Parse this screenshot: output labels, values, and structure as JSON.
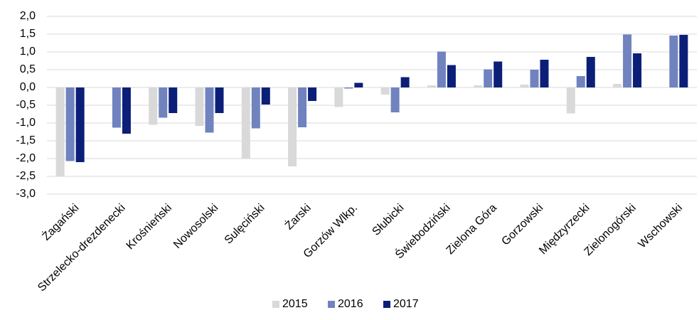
{
  "chart_data": {
    "type": "bar",
    "categories": [
      "Żagański",
      "Strzelecko-drezdenecki",
      "Krośnieński",
      "Nowosolski",
      "Sulęciński",
      "Żarski",
      "Gorzów Wlkp.",
      "Słubicki",
      "Świebodziński",
      "Zielona Góra",
      "Gorzowski",
      "Międzyrzecki",
      "Zielonogórski",
      "Wschowski"
    ],
    "series": [
      {
        "name": "2015",
        "color": "#d9d9d9",
        "values": [
          -2.5,
          0,
          -1.05,
          -1.08,
          -2.0,
          -2.22,
          -0.55,
          -0.2,
          0.06,
          0.06,
          0.08,
          -0.73,
          0.1,
          0
        ]
      },
      {
        "name": "2016",
        "color": "#7083bf",
        "values": [
          -2.07,
          -1.13,
          -0.85,
          -1.27,
          -1.15,
          -1.12,
          -0.03,
          -0.7,
          1.01,
          0.51,
          0.5,
          0.32,
          1.49,
          1.46
        ]
      },
      {
        "name": "2017",
        "color": "#0b1f78",
        "values": [
          -2.1,
          -1.3,
          -0.72,
          -0.72,
          -0.48,
          -0.38,
          0.13,
          0.29,
          0.63,
          0.73,
          0.78,
          0.86,
          0.96,
          1.48
        ]
      }
    ],
    "ylim": [
      -3,
      2
    ],
    "yticks": [
      {
        "value": 2,
        "label": "2,0"
      },
      {
        "value": 1.5,
        "label": "1,5"
      },
      {
        "value": 1,
        "label": "1,0"
      },
      {
        "value": 0.5,
        "label": "0,5"
      },
      {
        "value": 0,
        "label": "0,0"
      },
      {
        "value": -0.5,
        "label": "-0,5"
      },
      {
        "value": -1,
        "label": "-1,0"
      },
      {
        "value": -1.5,
        "label": "-1,5"
      },
      {
        "value": -2,
        "label": "-2,0"
      },
      {
        "value": -2.5,
        "label": "-2,5"
      },
      {
        "value": -3,
        "label": "-3,0"
      }
    ],
    "grid": true,
    "legend": "bottom"
  }
}
